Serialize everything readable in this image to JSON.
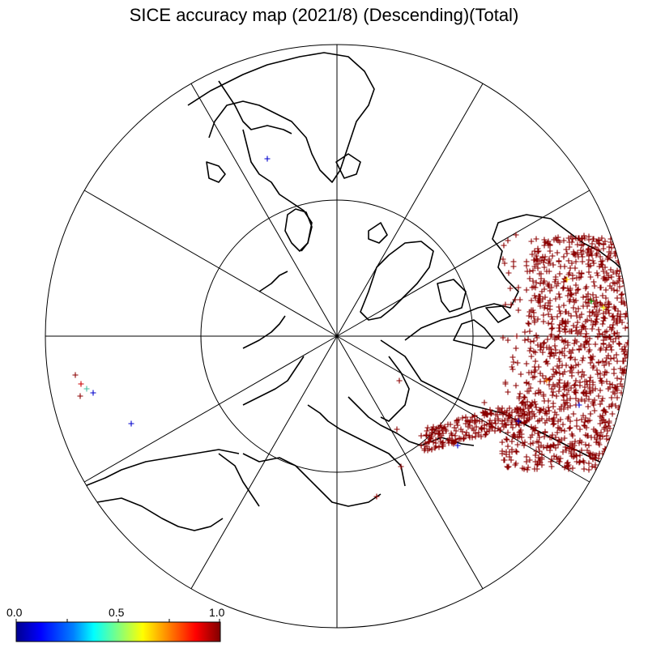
{
  "title": "SICE accuracy map (2021/8) (Descending)(Total)",
  "projection": "north-polar-stereographic",
  "colorbar": {
    "min_label": "0.0",
    "mid_label": "0.5",
    "max_label": "1.0",
    "colors": [
      "#00008f",
      "#0000ff",
      "#0080ff",
      "#00ffff",
      "#80ff80",
      "#ffff00",
      "#ff8000",
      "#ff0000",
      "#800000"
    ]
  },
  "colors": {
    "coast": "#000000",
    "grid": "#000000",
    "dominant_marker": "#8b0000",
    "background": "#ffffff"
  },
  "markers": {
    "symbol": "+",
    "note_outliers": [
      "blue",
      "green",
      "yellow",
      "red"
    ]
  }
}
